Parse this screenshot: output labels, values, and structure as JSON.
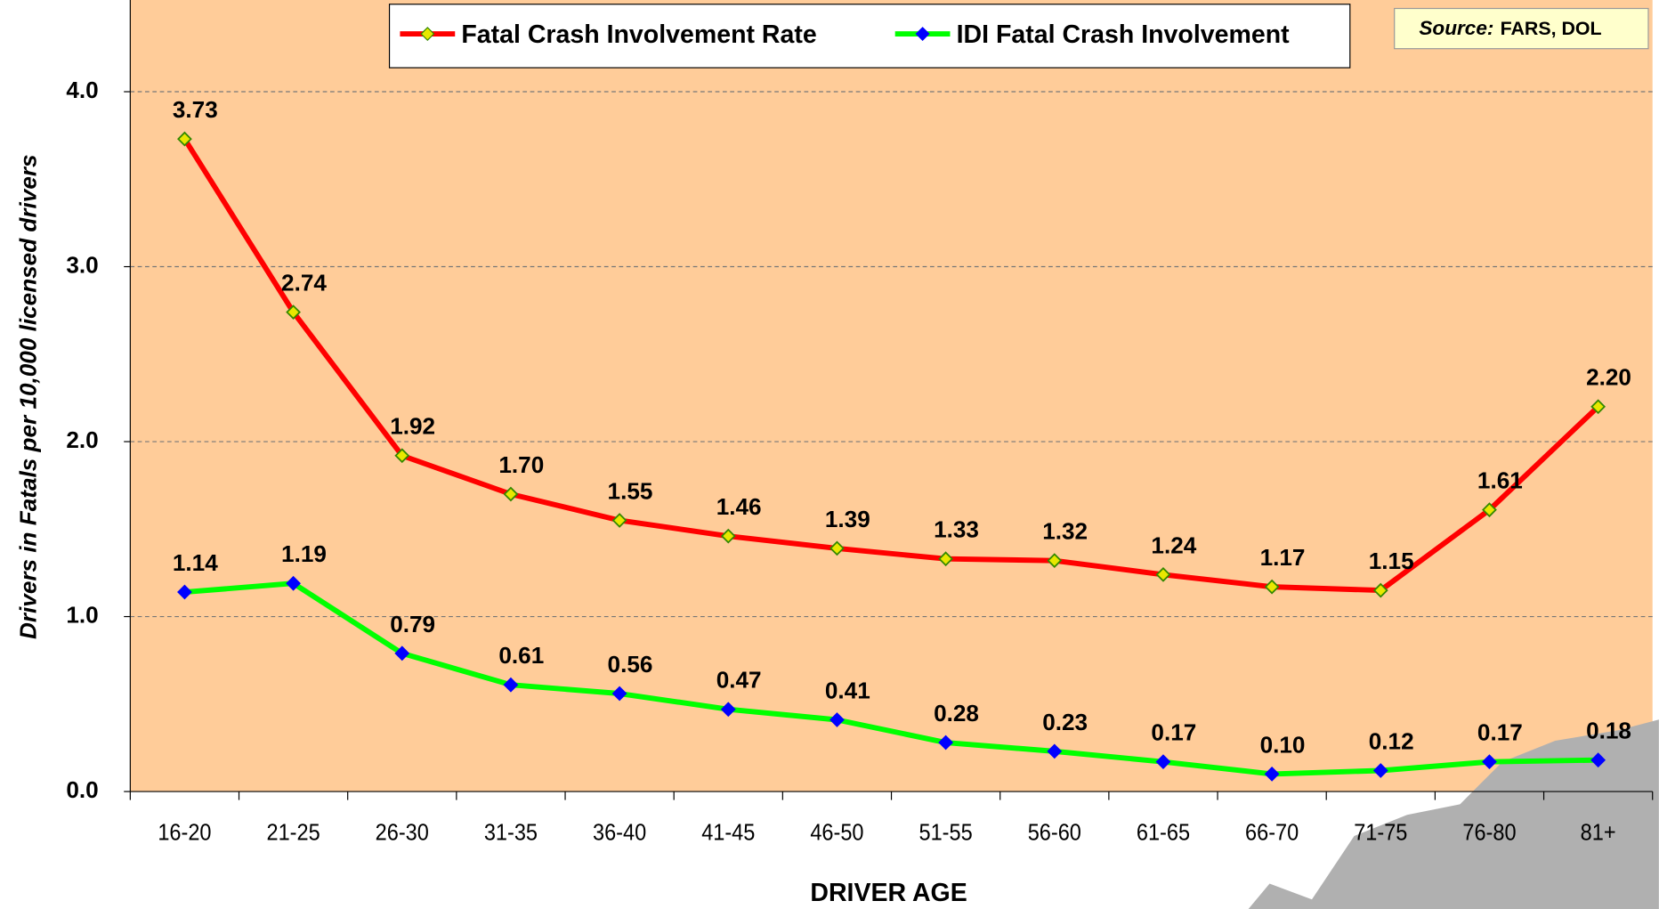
{
  "chart_data": {
    "type": "line",
    "xlabel": "DRIVER AGE",
    "ylabel": "Drivers in Fatals per 10,000 licensed drivers",
    "source_label": "Source:",
    "source": "FARS, DOL",
    "categories": [
      "16-20",
      "21-25",
      "26-30",
      "31-35",
      "36-40",
      "41-45",
      "46-50",
      "51-55",
      "56-60",
      "61-65",
      "66-70",
      "71-75",
      "76-80",
      "81+"
    ],
    "series": [
      {
        "name": "Fatal Crash Involvement Rate",
        "color": "#ff0000",
        "marker_color": "#e8e800",
        "values": [
          3.73,
          2.74,
          1.92,
          1.7,
          1.55,
          1.46,
          1.39,
          1.33,
          1.32,
          1.24,
          1.17,
          1.15,
          1.61,
          2.2
        ],
        "value_labels": [
          "3.73",
          "2.74",
          "1.92",
          "1.70",
          "1.55",
          "1.46",
          "1.39",
          "1.33",
          "1.32",
          "1.24",
          "1.17",
          "1.15",
          "1.61",
          "2.20"
        ]
      },
      {
        "name": "IDI Fatal Crash Involvement",
        "color": "#00ff00",
        "marker_color": "#0000ff",
        "values": [
          1.14,
          1.19,
          0.79,
          0.61,
          0.56,
          0.47,
          0.41,
          0.28,
          0.23,
          0.17,
          0.1,
          0.12,
          0.17,
          0.18
        ],
        "value_labels": [
          "1.14",
          "1.19",
          "0.79",
          "0.61",
          "0.56",
          "0.47",
          "0.41",
          "0.28",
          "0.23",
          "0.17",
          "0.10",
          "0.12",
          "0.17",
          "0.18"
        ]
      }
    ],
    "ylim": [
      0,
      4.5
    ],
    "yticks": [
      {
        "value": 0,
        "label": "0.0"
      },
      {
        "value": 1,
        "label": "1.0"
      },
      {
        "value": 2,
        "label": "2.0"
      },
      {
        "value": 3,
        "label": "3.0"
      },
      {
        "value": 4,
        "label": "4.0"
      }
    ],
    "grid": true
  }
}
